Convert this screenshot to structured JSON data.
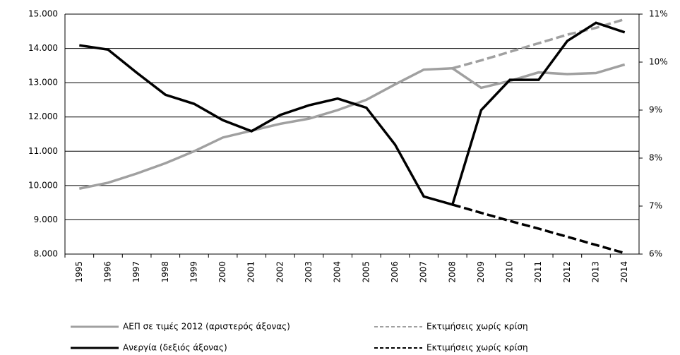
{
  "chart_data": {
    "type": "line",
    "categories": [
      "1995",
      "1996",
      "1997",
      "1998",
      "1999",
      "2000",
      "2001",
      "2002",
      "2003",
      "2004",
      "2005",
      "2006",
      "2007",
      "2008",
      "2009",
      "2010",
      "2011",
      "2012",
      "2013",
      "2014"
    ],
    "series": [
      {
        "name": "ΑΕΠ σε τιμές 2012 (αριστερός άξονας)",
        "color": "#a0a0a0",
        "dashed": false,
        "axis": "y",
        "values": [
          9910,
          10080,
          10350,
          10650,
          11000,
          11400,
          11600,
          11800,
          11950,
          12200,
          12500,
          12950,
          13380,
          13420,
          12850,
          13050,
          13300,
          13250,
          13280,
          13530
        ]
      },
      {
        "name": "Εκτιμήσεις χωρίς κρίση",
        "color": "#a0a0a0",
        "dashed": true,
        "axis": "y",
        "values": [
          null,
          null,
          null,
          null,
          null,
          null,
          null,
          null,
          null,
          null,
          null,
          null,
          null,
          13420,
          13650,
          13900,
          14150,
          14400,
          14600,
          14850
        ]
      },
      {
        "name": "Ανεργία (δεξιός άξονας)",
        "color": "#000000",
        "dashed": false,
        "axis": "y2",
        "values": [
          10.35,
          10.26,
          9.78,
          9.32,
          9.13,
          8.79,
          8.56,
          8.9,
          9.1,
          9.24,
          9.05,
          8.28,
          7.2,
          7.03,
          9.0,
          9.63,
          9.63,
          10.44,
          10.82,
          10.62
        ]
      },
      {
        "name": "Εκτιμήσεις χωρίς κρίση",
        "color": "#000000",
        "dashed": true,
        "axis": "y2",
        "values": [
          null,
          null,
          null,
          null,
          null,
          null,
          null,
          null,
          null,
          null,
          null,
          null,
          null,
          7.03,
          6.86,
          6.69,
          6.53,
          6.36,
          6.19,
          6.02
        ]
      }
    ],
    "ylim": [
      8000,
      15000
    ],
    "yticks": [
      {
        "value": 8000,
        "label": "8.000"
      },
      {
        "value": 9000,
        "label": "9.000"
      },
      {
        "value": 10000,
        "label": "10.000"
      },
      {
        "value": 11000,
        "label": "11.000"
      },
      {
        "value": 12000,
        "label": "12.000"
      },
      {
        "value": 13000,
        "label": "13.000"
      },
      {
        "value": 14000,
        "label": "14.000"
      },
      {
        "value": 15000,
        "label": "15.000"
      }
    ],
    "y2lim": [
      6,
      11
    ],
    "y2ticks": [
      {
        "value": 6,
        "label": "6%"
      },
      {
        "value": 7,
        "label": "7%"
      },
      {
        "value": 8,
        "label": "8%"
      },
      {
        "value": 9,
        "label": "9%"
      },
      {
        "value": 10,
        "label": "10%"
      },
      {
        "value": 11,
        "label": "11%"
      }
    ],
    "grid": true
  }
}
